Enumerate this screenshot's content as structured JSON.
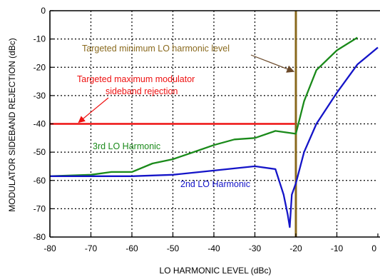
{
  "chart_data": {
    "type": "line",
    "title": "",
    "xlabel": "LO HARMONIC LEVEL (dBc)",
    "ylabel": "MODULATOR SIDEBAND REJECTION (dBc)",
    "xlim": [
      -80,
      0
    ],
    "ylim": [
      -80,
      0
    ],
    "x_ticks": [
      -80,
      -70,
      -60,
      -50,
      -40,
      -30,
      -20,
      -10,
      0
    ],
    "y_ticks": [
      0,
      -10,
      -20,
      -30,
      -40,
      -50,
      -60,
      -70,
      -80
    ],
    "x_tick_labels": [
      "-80",
      "-70",
      "-60",
      "-50",
      "-40",
      "-30",
      "-20",
      "-10",
      "0"
    ],
    "y_tick_labels": [
      "0",
      "-10",
      "-20",
      "-30",
      "-40",
      "-50",
      "-60",
      "-70",
      "-80"
    ],
    "grid": true,
    "colors": {
      "series_3rd": "#1a8a1a",
      "series_2nd": "#1414c8",
      "max_rejection_line": "#ee1111",
      "min_harmonic_line": "#8a6a1e"
    },
    "series": [
      {
        "name": "3rd LO Harmonic",
        "points": [
          [
            -80,
            -58.5
          ],
          [
            -70,
            -58
          ],
          [
            -65,
            -57
          ],
          [
            -60,
            -57
          ],
          [
            -55,
            -54
          ],
          [
            -50,
            -52.5
          ],
          [
            -45,
            -50
          ],
          [
            -40,
            -47.5
          ],
          [
            -35,
            -45.5
          ],
          [
            -30,
            -45
          ],
          [
            -25,
            -42.5
          ],
          [
            -20,
            -43.5
          ],
          [
            -18,
            -32
          ],
          [
            -15,
            -21
          ],
          [
            -10,
            -14
          ],
          [
            -5,
            -9.5
          ]
        ]
      },
      {
        "name": "2nd LO Harmonic",
        "points": [
          [
            -80,
            -58.5
          ],
          [
            -70,
            -58.5
          ],
          [
            -60,
            -58.5
          ],
          [
            -50,
            -58
          ],
          [
            -40,
            -56.5
          ],
          [
            -30,
            -55
          ],
          [
            -25,
            -56
          ],
          [
            -23,
            -65
          ],
          [
            -22,
            -72
          ],
          [
            -21.5,
            -76.5
          ],
          [
            -21,
            -65
          ],
          [
            -20,
            -61
          ],
          [
            -18,
            -50
          ],
          [
            -15,
            -40
          ],
          [
            -10,
            -29
          ],
          [
            -5,
            -19
          ],
          [
            0,
            -13
          ]
        ]
      }
    ],
    "reference_lines": [
      {
        "kind": "horizontal",
        "y": -40,
        "x_from": -80,
        "x_to": -20
      },
      {
        "kind": "vertical",
        "x": -20,
        "y_from": 0,
        "y_to": -80
      }
    ],
    "annotations": {
      "max_rejection": {
        "lines": [
          "Targeted maximum modulator",
          "sideband rejection"
        ],
        "arrow_to": [
          -73,
          -40
        ]
      },
      "min_harmonic": {
        "text": "Targeted minimum LO harmonic level",
        "arrow_to": [
          -20.5,
          -21.5
        ]
      },
      "label_3rd": "3rd LO Harmonic",
      "label_2nd": "2nd LO Harmonic"
    }
  }
}
